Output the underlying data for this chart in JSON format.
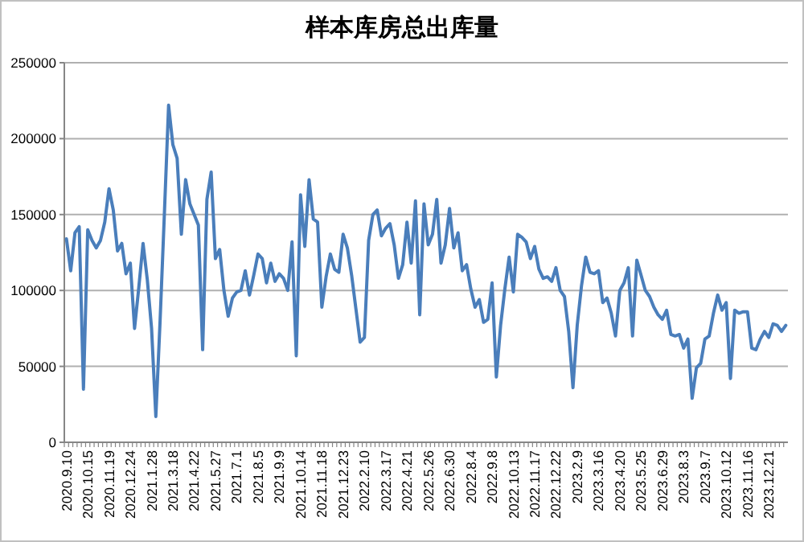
{
  "chart_data": {
    "type": "line",
    "title": "样本库房总出库量",
    "categories": [
      "2020.9.10",
      null,
      null,
      null,
      null,
      "2020.10.15",
      null,
      null,
      null,
      null,
      "2020.11.19",
      null,
      null,
      null,
      null,
      "2020.12.24",
      null,
      null,
      null,
      null,
      "2021.1.28",
      null,
      null,
      null,
      null,
      "2021.3.18",
      null,
      null,
      null,
      null,
      "2021.4.22",
      null,
      null,
      null,
      null,
      "2021.5.27",
      null,
      null,
      null,
      null,
      "2021.7.1",
      null,
      null,
      null,
      null,
      "2021.8.5",
      null,
      null,
      null,
      null,
      "2021.9.9",
      null,
      null,
      null,
      null,
      "2021.10.14",
      null,
      null,
      null,
      null,
      "2021.11.18",
      null,
      null,
      null,
      null,
      "2021.12.23",
      null,
      null,
      null,
      null,
      "2022.2.10",
      null,
      null,
      null,
      null,
      "2022.3.17",
      null,
      null,
      null,
      null,
      "2022.4.21",
      null,
      null,
      null,
      null,
      "2022.5.26",
      null,
      null,
      null,
      null,
      "2022.6.30",
      null,
      null,
      null,
      null,
      "2022.8.4",
      null,
      null,
      null,
      null,
      "2022.9.8",
      null,
      null,
      null,
      null,
      "2022.10.13",
      null,
      null,
      null,
      null,
      "2022.11.17",
      null,
      null,
      null,
      null,
      "2022.12.22",
      null,
      null,
      null,
      null,
      "2023.2.9",
      null,
      null,
      null,
      null,
      "2023.3.16",
      null,
      null,
      null,
      null,
      "2023.4.20",
      null,
      null,
      null,
      null,
      "2023.5.25",
      null,
      null,
      null,
      null,
      "2023.6.29",
      null,
      null,
      null,
      null,
      "2023.8.3",
      null,
      null,
      null,
      null,
      "2023.9.7",
      null,
      null,
      null,
      null,
      "2023.10.12",
      null,
      null,
      null,
      null,
      "2023.11.16",
      null,
      null,
      null,
      null,
      "2023.12.21",
      null,
      null,
      null,
      null
    ],
    "series": [
      {
        "color": "#4a7ebb",
        "values": [
          134000,
          113000,
          138000,
          142000,
          35000,
          140000,
          133000,
          128000,
          133000,
          145000,
          167000,
          153000,
          126000,
          131000,
          111000,
          118000,
          75000,
          102000,
          131000,
          107000,
          75000,
          17000,
          80000,
          150000,
          222000,
          196000,
          187000,
          137000,
          173000,
          157000,
          150000,
          143000,
          61000,
          160000,
          178000,
          121000,
          127000,
          100000,
          83000,
          95000,
          99000,
          100000,
          113000,
          97000,
          110000,
          124000,
          121000,
          105000,
          118000,
          106000,
          111000,
          108000,
          100000,
          132000,
          57000,
          163000,
          129000,
          173000,
          147000,
          145000,
          89000,
          109000,
          124000,
          114000,
          112000,
          137000,
          128000,
          110000,
          88000,
          66000,
          69000,
          133000,
          150000,
          153000,
          136000,
          141000,
          144000,
          130000,
          108000,
          117000,
          145000,
          118000,
          159000,
          84000,
          157000,
          130000,
          137000,
          160000,
          118000,
          130000,
          154000,
          128000,
          138000,
          113000,
          117000,
          101000,
          89000,
          94000,
          79000,
          81000,
          105000,
          43000,
          77000,
          101000,
          122000,
          99000,
          137000,
          135000,
          132000,
          121000,
          129000,
          114000,
          108000,
          109000,
          106000,
          115000,
          100000,
          96000,
          73000,
          36000,
          77000,
          103000,
          122000,
          112000,
          111000,
          113000,
          92000,
          95000,
          85000,
          70000,
          100000,
          105000,
          115000,
          70000,
          120000,
          110000,
          100000,
          96000,
          89000,
          84000,
          81000,
          87000,
          71000,
          70000,
          71000,
          62000,
          68000,
          29000,
          49000,
          52000,
          68000,
          70000,
          85000,
          97000,
          87000,
          92000,
          42000,
          87000,
          85000,
          86000,
          86000,
          62000,
          61000,
          68000,
          73000,
          69000,
          78000,
          77000,
          73000,
          77000
        ]
      }
    ],
    "ylim": [
      0,
      250000
    ],
    "yticks": [
      0,
      50000,
      100000,
      150000,
      200000,
      250000
    ],
    "grid": "y",
    "marker": "none",
    "line_style": "solid"
  }
}
